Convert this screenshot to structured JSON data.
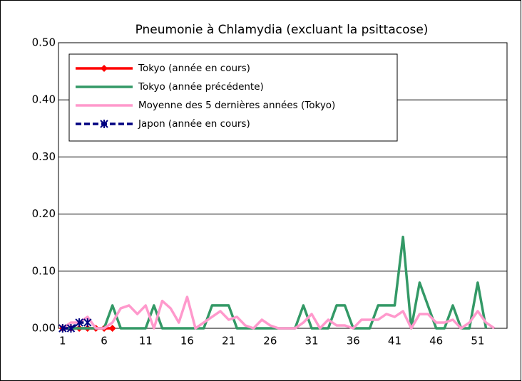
{
  "chart_data": {
    "type": "line",
    "title": "Pneumonie à Chlamydia (excluant la psittacose)",
    "categories": [
      "1",
      null,
      null,
      null,
      null,
      "6",
      null,
      null,
      null,
      null,
      "11",
      null,
      null,
      null,
      null,
      "16",
      null,
      null,
      null,
      null,
      "21",
      null,
      null,
      null,
      null,
      "26",
      null,
      null,
      null,
      null,
      "31",
      null,
      null,
      null,
      null,
      "36",
      null,
      null,
      null,
      null,
      "41",
      null,
      null,
      null,
      null,
      "46",
      null,
      null,
      null,
      null,
      "51",
      null,
      null
    ],
    "series": [
      {
        "name": "Tokyo (année en cours)",
        "color": "#ff0000",
        "marker": "diamond",
        "dash": false,
        "values": [
          0,
          0,
          0,
          0,
          0,
          0,
          0,
          null,
          null,
          null,
          null,
          null,
          null,
          null,
          null,
          null,
          null,
          null,
          null,
          null,
          null,
          null,
          null,
          null,
          null,
          null,
          null,
          null,
          null,
          null,
          null,
          null,
          null,
          null,
          null,
          null,
          null,
          null,
          null,
          null,
          null,
          null,
          null,
          null,
          null,
          null,
          null,
          null,
          null,
          null,
          null,
          null,
          null
        ]
      },
      {
        "name": "Tokyo (année précédente)",
        "color": "#339966",
        "marker": "none",
        "dash": false,
        "values": [
          0,
          0,
          0,
          0,
          0,
          0,
          0.04,
          0,
          0,
          0,
          0,
          0.04,
          0,
          0,
          0,
          0,
          0,
          0,
          0.04,
          0.04,
          0.04,
          0,
          0,
          0,
          0,
          0,
          0,
          0,
          0,
          0.04,
          0,
          0,
          0,
          0.04,
          0.04,
          0,
          0,
          0,
          0.04,
          0.04,
          0.04,
          0.16,
          0,
          0.08,
          0.04,
          0,
          0,
          0.04,
          0,
          0,
          0.08,
          0,
          null
        ]
      },
      {
        "name": "Moyenne des 5 dernières années (Tokyo)",
        "color": "#ff99cc",
        "marker": "none",
        "dash": false,
        "values": [
          0,
          0.01,
          0.01,
          0.02,
          0,
          0,
          0.01,
          0.035,
          0.04,
          0.025,
          0.04,
          0,
          0.048,
          0.035,
          0.01,
          0.055,
          0,
          0.01,
          0.02,
          0.03,
          0.015,
          0.02,
          0.005,
          0,
          0.015,
          0.005,
          0,
          0,
          0,
          0.01,
          0.025,
          0,
          0.015,
          0.005,
          0.005,
          0,
          0.015,
          0.015,
          0.015,
          0.025,
          0.02,
          0.03,
          0,
          0.025,
          0.025,
          0.01,
          0.01,
          0.015,
          0,
          0.01,
          0.03,
          0.01,
          0
        ]
      },
      {
        "name": "Japon (année en cours)",
        "color": "#000080",
        "marker": "star",
        "dash": true,
        "values": [
          0,
          0,
          0.01,
          0.01,
          null,
          null,
          null,
          null,
          null,
          null,
          null,
          null,
          null,
          null,
          null,
          null,
          null,
          null,
          null,
          null,
          null,
          null,
          null,
          null,
          null,
          null,
          null,
          null,
          null,
          null,
          null,
          null,
          null,
          null,
          null,
          null,
          null,
          null,
          null,
          null,
          null,
          null,
          null,
          null,
          null,
          null,
          null,
          null,
          null,
          null,
          null,
          null,
          null
        ]
      }
    ],
    "ylim": [
      0,
      0.5
    ],
    "yticks": [
      {
        "value": 0,
        "label": "0.00"
      },
      {
        "value": 0.1,
        "label": "0.10"
      },
      {
        "value": 0.2,
        "label": "0.20"
      },
      {
        "value": 0.3,
        "label": "0.30"
      },
      {
        "value": 0.4,
        "label": "0.40"
      },
      {
        "value": 0.5,
        "label": "0.50"
      }
    ],
    "grid": true
  }
}
